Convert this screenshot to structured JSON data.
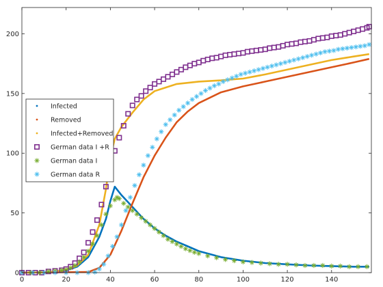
{
  "chart_data": {
    "type": "line",
    "xlim": [
      0,
      158
    ],
    "ylim": [
      0,
      222
    ],
    "x_ticks": [
      0,
      20,
      40,
      60,
      80,
      100,
      120,
      140
    ],
    "y_ticks": [
      0,
      50,
      100,
      150,
      200
    ],
    "x_tick_labels": [
      "0",
      "20",
      "40",
      "60",
      "80",
      "100",
      "120",
      "140"
    ],
    "y_tick_labels": [
      "0",
      "50",
      "100",
      "150",
      "200"
    ],
    "grid": false,
    "legend_position": "left-middle",
    "legend": [
      {
        "name": "Infected",
        "marker": "dot",
        "color": "#0072BD"
      },
      {
        "name": "Removed",
        "marker": "dot",
        "color": "#D95319"
      },
      {
        "name": "Infected+Removed",
        "marker": "dot",
        "color": "#EDB120"
      },
      {
        "name": "German data I +R",
        "marker": "square",
        "color": "#7E2F8E"
      },
      {
        "name": "German data I",
        "marker": "asterisk",
        "color": "#77AC30"
      },
      {
        "name": "German data R",
        "marker": "asterisk",
        "color": "#4DBEEE"
      }
    ],
    "series": [
      {
        "name": "Infected",
        "style": "line",
        "color": "#0072BD",
        "points": [
          [
            0,
            0
          ],
          [
            10,
            0.3
          ],
          [
            15,
            0.8
          ],
          [
            20,
            2
          ],
          [
            25,
            5
          ],
          [
            30,
            13
          ],
          [
            35,
            30
          ],
          [
            38,
            45
          ],
          [
            40,
            60
          ],
          [
            42,
            72
          ],
          [
            45,
            65
          ],
          [
            50,
            55
          ],
          [
            55,
            45
          ],
          [
            60,
            37
          ],
          [
            65,
            31
          ],
          [
            70,
            26
          ],
          [
            75,
            22
          ],
          [
            80,
            18
          ],
          [
            90,
            13
          ],
          [
            100,
            10
          ],
          [
            110,
            8
          ],
          [
            120,
            7
          ],
          [
            130,
            6
          ],
          [
            140,
            5.5
          ],
          [
            150,
            5
          ],
          [
            157,
            5
          ]
        ]
      },
      {
        "name": "Removed",
        "style": "line",
        "color": "#D95319",
        "points": [
          [
            0,
            0
          ],
          [
            30,
            0.5
          ],
          [
            35,
            4
          ],
          [
            40,
            15
          ],
          [
            45,
            35
          ],
          [
            50,
            58
          ],
          [
            55,
            80
          ],
          [
            60,
            98
          ],
          [
            65,
            113
          ],
          [
            70,
            126
          ],
          [
            75,
            135
          ],
          [
            80,
            142
          ],
          [
            90,
            151
          ],
          [
            100,
            156
          ],
          [
            110,
            160
          ],
          [
            120,
            164
          ],
          [
            130,
            168
          ],
          [
            140,
            172
          ],
          [
            150,
            176
          ],
          [
            157,
            179
          ]
        ]
      },
      {
        "name": "Infected+Removed",
        "style": "line",
        "color": "#EDB120",
        "points": [
          [
            0,
            0
          ],
          [
            10,
            0.3
          ],
          [
            15,
            1
          ],
          [
            20,
            2.5
          ],
          [
            25,
            6
          ],
          [
            30,
            15
          ],
          [
            35,
            40
          ],
          [
            38,
            70
          ],
          [
            40,
            97
          ],
          [
            42,
            112
          ],
          [
            45,
            122
          ],
          [
            50,
            134
          ],
          [
            55,
            145
          ],
          [
            60,
            152
          ],
          [
            65,
            155
          ],
          [
            70,
            158
          ],
          [
            80,
            160
          ],
          [
            90,
            161
          ],
          [
            100,
            162.5
          ],
          [
            110,
            166
          ],
          [
            120,
            170
          ],
          [
            130,
            174
          ],
          [
            140,
            178
          ],
          [
            150,
            181
          ],
          [
            157,
            183
          ]
        ]
      },
      {
        "name": "German data I +R",
        "style": "marker",
        "marker": "square",
        "color": "#7E2F8E",
        "points": [
          [
            0,
            0
          ],
          [
            3,
            0
          ],
          [
            6,
            0
          ],
          [
            9,
            0
          ],
          [
            12,
            1
          ],
          [
            15,
            1.5
          ],
          [
            18,
            2
          ],
          [
            20,
            3
          ],
          [
            22,
            5
          ],
          [
            24,
            8
          ],
          [
            26,
            12
          ],
          [
            28,
            17
          ],
          [
            30,
            25
          ],
          [
            32,
            34
          ],
          [
            34,
            44
          ],
          [
            36,
            57
          ],
          [
            38,
            72
          ],
          [
            40,
            88
          ],
          [
            42,
            102
          ],
          [
            44,
            113
          ],
          [
            46,
            123
          ],
          [
            48,
            133
          ],
          [
            50,
            140
          ],
          [
            52,
            145
          ],
          [
            54,
            148
          ],
          [
            56,
            152
          ],
          [
            58,
            155
          ],
          [
            60,
            158
          ],
          [
            62,
            160
          ],
          [
            64,
            162
          ],
          [
            66,
            164
          ],
          [
            68,
            166
          ],
          [
            70,
            168
          ],
          [
            72,
            170
          ],
          [
            74,
            172
          ],
          [
            76,
            173.5
          ],
          [
            78,
            175
          ],
          [
            80,
            176
          ],
          [
            82,
            177.5
          ],
          [
            84,
            178.5
          ],
          [
            86,
            179.5
          ],
          [
            88,
            180
          ],
          [
            90,
            181
          ],
          [
            92,
            182
          ],
          [
            94,
            182.5
          ],
          [
            96,
            183
          ],
          [
            98,
            183.5
          ],
          [
            100,
            184
          ],
          [
            102,
            185
          ],
          [
            104,
            185.5
          ],
          [
            106,
            186
          ],
          [
            108,
            186.5
          ],
          [
            110,
            187
          ],
          [
            112,
            188
          ],
          [
            114,
            188.5
          ],
          [
            116,
            189
          ],
          [
            118,
            190
          ],
          [
            120,
            191
          ],
          [
            122,
            191.5
          ],
          [
            124,
            192
          ],
          [
            126,
            193
          ],
          [
            128,
            193.5
          ],
          [
            130,
            194
          ],
          [
            132,
            195
          ],
          [
            134,
            196
          ],
          [
            136,
            196.5
          ],
          [
            138,
            197
          ],
          [
            140,
            198
          ],
          [
            142,
            198.5
          ],
          [
            144,
            199
          ],
          [
            146,
            200
          ],
          [
            148,
            201
          ],
          [
            150,
            202
          ],
          [
            152,
            203
          ],
          [
            154,
            204
          ],
          [
            156,
            205
          ],
          [
            157,
            206
          ]
        ]
      },
      {
        "name": "German data I",
        "style": "marker",
        "marker": "asterisk",
        "color": "#77AC30",
        "points": [
          [
            0,
            0
          ],
          [
            4,
            0
          ],
          [
            8,
            0
          ],
          [
            12,
            1
          ],
          [
            15,
            1.5
          ],
          [
            18,
            2
          ],
          [
            20,
            2.5
          ],
          [
            22,
            4
          ],
          [
            24,
            6
          ],
          [
            26,
            9
          ],
          [
            28,
            13
          ],
          [
            30,
            18
          ],
          [
            32,
            24
          ],
          [
            34,
            31
          ],
          [
            36,
            40
          ],
          [
            38,
            49
          ],
          [
            40,
            56
          ],
          [
            42,
            61
          ],
          [
            43,
            63
          ],
          [
            44,
            62
          ],
          [
            46,
            58
          ],
          [
            48,
            55
          ],
          [
            50,
            52
          ],
          [
            52,
            49
          ],
          [
            54,
            46
          ],
          [
            56,
            43
          ],
          [
            58,
            40
          ],
          [
            60,
            37
          ],
          [
            62,
            34
          ],
          [
            64,
            31
          ],
          [
            66,
            28
          ],
          [
            68,
            26
          ],
          [
            70,
            24
          ],
          [
            72,
            22
          ],
          [
            74,
            20
          ],
          [
            76,
            18.5
          ],
          [
            78,
            17
          ],
          [
            80,
            16
          ],
          [
            84,
            14
          ],
          [
            88,
            12.5
          ],
          [
            92,
            11
          ],
          [
            96,
            10
          ],
          [
            100,
            9
          ],
          [
            104,
            8.5
          ],
          [
            108,
            8
          ],
          [
            112,
            7.5
          ],
          [
            116,
            7
          ],
          [
            120,
            7
          ],
          [
            124,
            6.5
          ],
          [
            128,
            6
          ],
          [
            132,
            6
          ],
          [
            136,
            6
          ],
          [
            140,
            5.5
          ],
          [
            144,
            5.5
          ],
          [
            148,
            5
          ],
          [
            152,
            5
          ],
          [
            156,
            5
          ]
        ]
      },
      {
        "name": "German data R",
        "style": "marker",
        "marker": "asterisk",
        "color": "#4DBEEE",
        "points": [
          [
            0,
            0
          ],
          [
            5,
            0
          ],
          [
            10,
            0
          ],
          [
            15,
            0
          ],
          [
            20,
            0
          ],
          [
            25,
            0
          ],
          [
            30,
            0
          ],
          [
            33,
            0.5
          ],
          [
            35,
            3
          ],
          [
            37,
            7
          ],
          [
            39,
            14
          ],
          [
            41,
            22
          ],
          [
            43,
            30
          ],
          [
            45,
            40
          ],
          [
            47,
            52
          ],
          [
            49,
            63
          ],
          [
            51,
            73
          ],
          [
            53,
            82
          ],
          [
            55,
            90
          ],
          [
            57,
            98
          ],
          [
            59,
            105
          ],
          [
            61,
            112
          ],
          [
            63,
            118
          ],
          [
            65,
            124
          ],
          [
            67,
            128
          ],
          [
            69,
            132
          ],
          [
            71,
            136
          ],
          [
            73,
            139
          ],
          [
            75,
            142
          ],
          [
            77,
            145
          ],
          [
            79,
            147.5
          ],
          [
            81,
            150
          ],
          [
            83,
            152.5
          ],
          [
            85,
            154.5
          ],
          [
            87,
            156.5
          ],
          [
            89,
            158
          ],
          [
            91,
            160
          ],
          [
            93,
            161.5
          ],
          [
            95,
            163
          ],
          [
            97,
            164.5
          ],
          [
            99,
            166
          ],
          [
            101,
            167
          ],
          [
            103,
            168
          ],
          [
            105,
            169
          ],
          [
            107,
            170
          ],
          [
            109,
            171
          ],
          [
            111,
            172
          ],
          [
            113,
            173
          ],
          [
            115,
            174
          ],
          [
            117,
            175
          ],
          [
            119,
            176
          ],
          [
            121,
            177
          ],
          [
            123,
            178
          ],
          [
            125,
            179
          ],
          [
            127,
            180
          ],
          [
            129,
            181
          ],
          [
            131,
            182
          ],
          [
            133,
            183
          ],
          [
            135,
            184
          ],
          [
            137,
            185
          ],
          [
            139,
            185.5
          ],
          [
            141,
            186
          ],
          [
            143,
            187
          ],
          [
            145,
            187.5
          ],
          [
            147,
            188
          ],
          [
            149,
            188.5
          ],
          [
            151,
            189
          ],
          [
            153,
            189.5
          ],
          [
            155,
            190
          ],
          [
            157,
            191
          ]
        ]
      }
    ]
  }
}
